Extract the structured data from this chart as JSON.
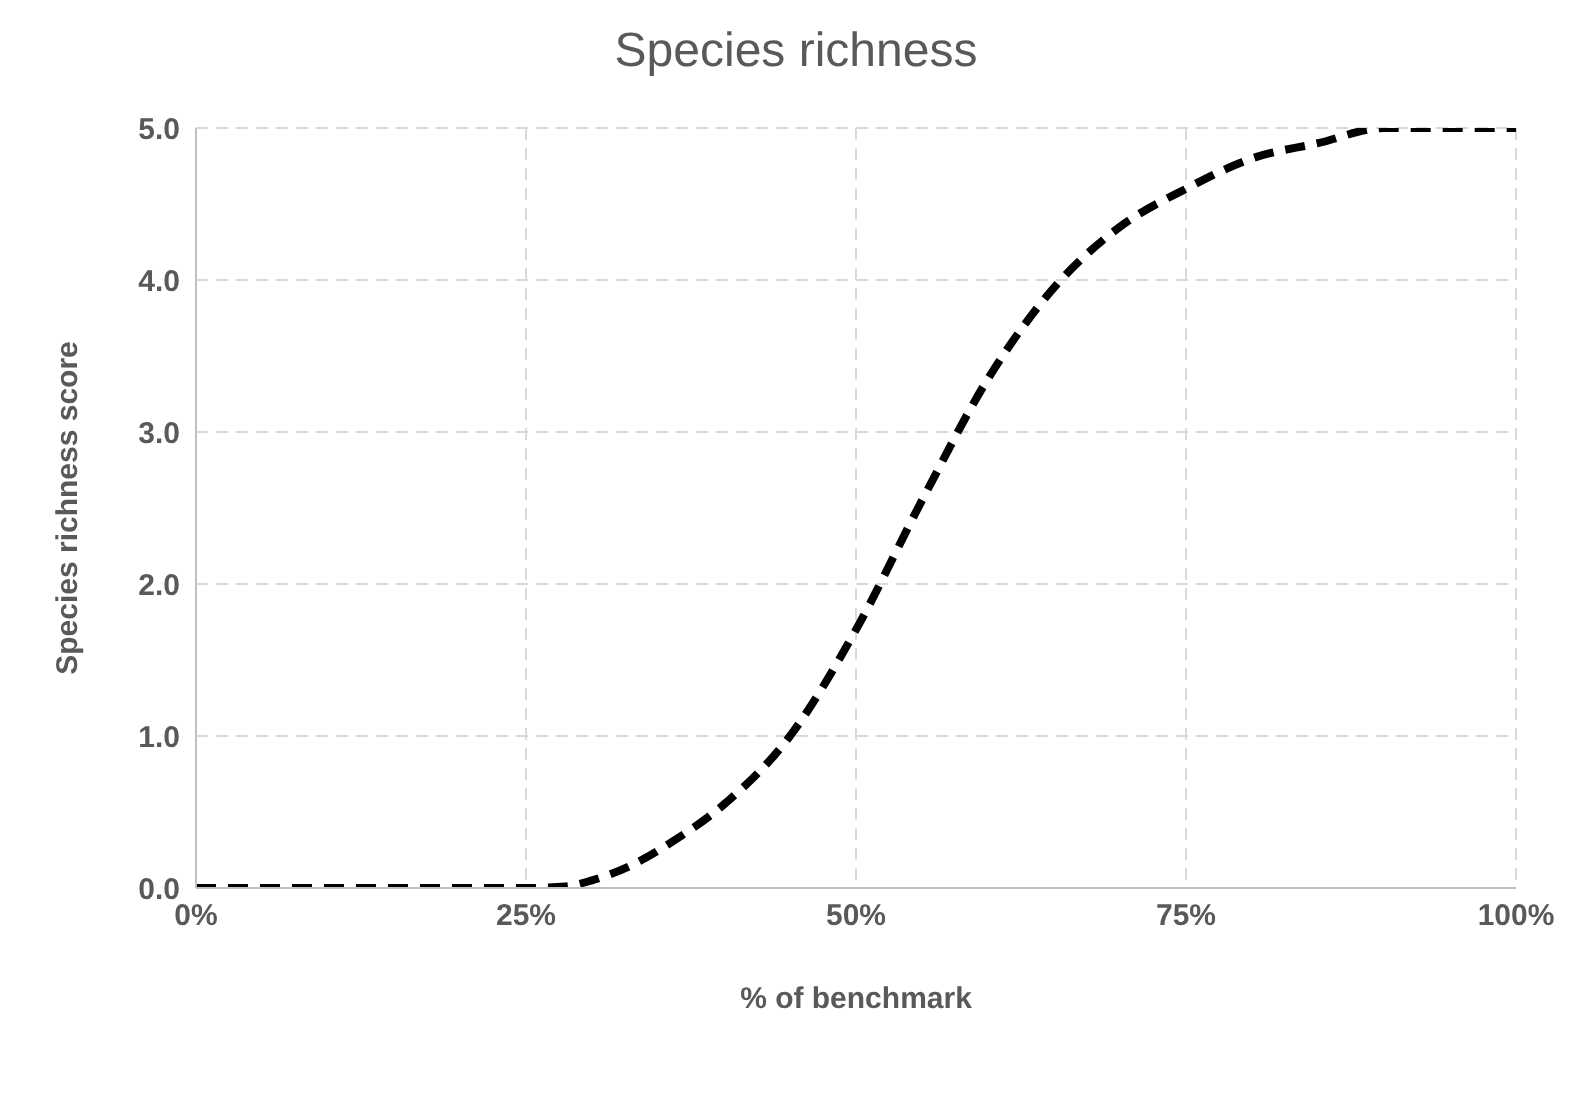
{
  "chart_data": {
    "type": "line",
    "title": "Species richness",
    "xlabel": "% of benchmark",
    "ylabel": "Species richness score",
    "x": [
      0,
      25,
      28,
      30,
      33,
      36,
      40,
      45,
      50,
      55,
      60,
      65,
      70,
      75,
      80,
      85,
      90,
      100
    ],
    "series": [
      {
        "color": "#000000",
        "values": [
          0,
          0,
          0.01,
          0.05,
          0.15,
          0.3,
          0.55,
          1.0,
          1.7,
          2.55,
          3.35,
          3.95,
          4.35,
          4.6,
          4.8,
          4.9,
          5.0,
          5.0
        ]
      }
    ],
    "xlim": [
      0,
      100
    ],
    "xticks": [
      {
        "value": 0,
        "label": "0%"
      },
      {
        "value": 25,
        "label": "25%"
      },
      {
        "value": 50,
        "label": "50%"
      },
      {
        "value": 75,
        "label": "75%"
      },
      {
        "value": 100,
        "label": "100%"
      }
    ],
    "ylim": [
      0,
      5
    ],
    "yticks": [
      {
        "value": 0,
        "label": "0.0"
      },
      {
        "value": 1,
        "label": "1.0"
      },
      {
        "value": 2,
        "label": "2.0"
      },
      {
        "value": 3,
        "label": "3.0"
      },
      {
        "value": 4,
        "label": "4.0"
      },
      {
        "value": 5,
        "label": "5.0"
      }
    ],
    "grid": true,
    "marker": "none",
    "line_style": "dashed"
  }
}
